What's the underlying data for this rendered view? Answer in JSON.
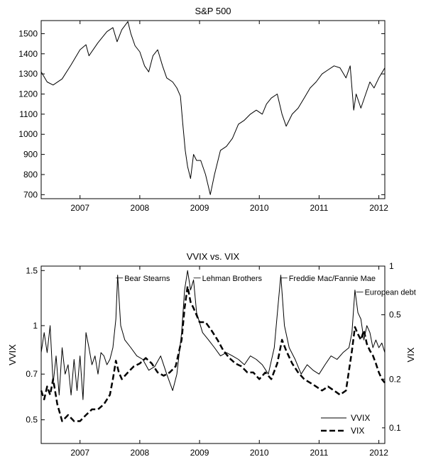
{
  "chart_data": [
    {
      "type": "line",
      "title": "S&P 500",
      "xlabel": "",
      "ylabel": "",
      "x_ticks": [
        "2007",
        "2008",
        "2009",
        "2010",
        "2011",
        "2012"
      ],
      "x_tick_years": [
        2007,
        2008,
        2009,
        2010,
        2011,
        2012
      ],
      "xlim": [
        2006.35,
        2012.1
      ],
      "ylim": [
        680,
        1565
      ],
      "y_ticks": [
        700,
        800,
        900,
        1000,
        1100,
        1200,
        1300,
        1400,
        1500
      ],
      "grid": false,
      "series": [
        {
          "color": "#000000",
          "x": [
            2006.35,
            2006.45,
            2006.55,
            2006.7,
            2006.85,
            2007.0,
            2007.1,
            2007.15,
            2007.3,
            2007.45,
            2007.55,
            2007.62,
            2007.7,
            2007.8,
            2007.85,
            2007.92,
            2008.0,
            2008.08,
            2008.15,
            2008.22,
            2008.3,
            2008.38,
            2008.45,
            2008.55,
            2008.62,
            2008.68,
            2008.72,
            2008.76,
            2008.8,
            2008.85,
            2008.9,
            2008.95,
            2009.02,
            2009.1,
            2009.18,
            2009.25,
            2009.35,
            2009.45,
            2009.55,
            2009.65,
            2009.75,
            2009.85,
            2009.95,
            2010.05,
            2010.12,
            2010.2,
            2010.3,
            2010.38,
            2010.45,
            2010.55,
            2010.65,
            2010.75,
            2010.85,
            2010.95,
            2011.05,
            2011.15,
            2011.25,
            2011.35,
            2011.45,
            2011.52,
            2011.58,
            2011.62,
            2011.7,
            2011.78,
            2011.85,
            2011.92,
            2012.0,
            2012.1
          ],
          "values": [
            1310,
            1260,
            1245,
            1275,
            1345,
            1420,
            1445,
            1390,
            1455,
            1510,
            1530,
            1460,
            1520,
            1560,
            1500,
            1440,
            1410,
            1340,
            1310,
            1390,
            1420,
            1340,
            1280,
            1260,
            1230,
            1190,
            1050,
            920,
            840,
            780,
            900,
            870,
            870,
            800,
            700,
            800,
            920,
            940,
            980,
            1050,
            1070,
            1100,
            1120,
            1100,
            1150,
            1180,
            1200,
            1100,
            1040,
            1100,
            1130,
            1180,
            1230,
            1260,
            1300,
            1320,
            1340,
            1330,
            1280,
            1340,
            1120,
            1200,
            1130,
            1200,
            1260,
            1230,
            1280,
            1330
          ]
        }
      ]
    },
    {
      "type": "line",
      "title": "VVIX vs. VIX",
      "xlabel": "",
      "ylabel": "VVIX",
      "ylabel_right": "VIX",
      "x_ticks": [
        "2007",
        "2008",
        "2009",
        "2010",
        "2011",
        "2012"
      ],
      "x_tick_years": [
        2007,
        2008,
        2009,
        2010,
        2011,
        2012
      ],
      "xlim": [
        2006.35,
        2012.1
      ],
      "y_scale": "log",
      "ylim": [
        0.42,
        1.55
      ],
      "y_ticks": [
        0.5,
        0.7,
        1,
        1.5
      ],
      "y_tick_labels": [
        "0.5",
        "0.7",
        "1",
        "1.5"
      ],
      "y2_scale": "log",
      "y2lim": [
        0.08,
        1
      ],
      "y2_ticks": [
        0.1,
        0.2,
        0.5,
        1
      ],
      "y2_tick_labels": [
        "0.1",
        "0.2",
        "0.5",
        "1"
      ],
      "grid": false,
      "legend": "bottom-right",
      "annotations": [
        {
          "text": "Bear Stearns",
          "x": 2007.6,
          "y": 1.42
        },
        {
          "text": "Lehman Brothers",
          "x": 2008.9,
          "y": 1.42
        },
        {
          "text": "Freddie Mac/Fannie Mae",
          "x": 2010.35,
          "y": 1.42
        },
        {
          "text": "European debt",
          "x": 2011.62,
          "y": 1.28
        }
      ],
      "series": [
        {
          "name": "VVIX",
          "axis": "left",
          "dash": "solid",
          "color": "#000000",
          "x": [
            2006.35,
            2006.4,
            2006.45,
            2006.5,
            2006.55,
            2006.6,
            2006.65,
            2006.7,
            2006.75,
            2006.8,
            2006.85,
            2006.9,
            2006.95,
            2007.0,
            2007.05,
            2007.1,
            2007.15,
            2007.2,
            2007.25,
            2007.3,
            2007.35,
            2007.4,
            2007.45,
            2007.5,
            2007.55,
            2007.6,
            2007.63,
            2007.68,
            2007.75,
            2007.85,
            2007.95,
            2008.05,
            2008.15,
            2008.25,
            2008.35,
            2008.45,
            2008.55,
            2008.62,
            2008.7,
            2008.75,
            2008.8,
            2008.85,
            2008.9,
            2008.95,
            2009.05,
            2009.15,
            2009.25,
            2009.35,
            2009.45,
            2009.55,
            2009.65,
            2009.75,
            2009.85,
            2009.95,
            2010.05,
            2010.15,
            2010.25,
            2010.32,
            2010.36,
            2010.42,
            2010.5,
            2010.6,
            2010.7,
            2010.8,
            2010.9,
            2011.0,
            2011.1,
            2011.2,
            2011.3,
            2011.4,
            2011.5,
            2011.55,
            2011.6,
            2011.65,
            2011.7,
            2011.75,
            2011.8,
            2011.85,
            2011.9,
            2011.95,
            2012.0,
            2012.05,
            2012.1
          ],
          "values": [
            0.82,
            0.95,
            0.82,
            1.0,
            0.65,
            0.8,
            0.6,
            0.85,
            0.7,
            0.75,
            0.6,
            0.78,
            0.62,
            0.8,
            0.58,
            0.95,
            0.85,
            0.75,
            0.8,
            0.7,
            0.82,
            0.8,
            0.75,
            0.78,
            0.85,
            1.05,
            1.45,
            1.0,
            0.9,
            0.85,
            0.8,
            0.78,
            0.72,
            0.74,
            0.8,
            0.7,
            0.62,
            0.7,
            0.95,
            1.3,
            1.5,
            1.3,
            1.4,
            1.1,
            0.95,
            0.9,
            0.85,
            0.8,
            0.82,
            0.8,
            0.78,
            0.75,
            0.8,
            0.78,
            0.75,
            0.7,
            0.85,
            1.2,
            1.45,
            1.0,
            0.85,
            0.78,
            0.7,
            0.75,
            0.72,
            0.7,
            0.75,
            0.8,
            0.78,
            0.82,
            0.85,
            0.95,
            1.3,
            1.1,
            1.05,
            0.9,
            1.0,
            0.95,
            0.85,
            0.9,
            0.85,
            0.88,
            0.82
          ]
        },
        {
          "name": "VIX",
          "axis": "right",
          "dash": "dashed",
          "color": "#000000",
          "x": [
            2006.35,
            2006.4,
            2006.45,
            2006.5,
            2006.55,
            2006.62,
            2006.7,
            2006.8,
            2006.9,
            2007.0,
            2007.1,
            2007.2,
            2007.3,
            2007.4,
            2007.5,
            2007.55,
            2007.6,
            2007.65,
            2007.7,
            2007.8,
            2007.9,
            2008.0,
            2008.1,
            2008.2,
            2008.3,
            2008.4,
            2008.5,
            2008.6,
            2008.7,
            2008.75,
            2008.8,
            2008.85,
            2008.9,
            2009.0,
            2009.1,
            2009.2,
            2009.3,
            2009.4,
            2009.5,
            2009.6,
            2009.7,
            2009.8,
            2009.9,
            2010.0,
            2010.1,
            2010.2,
            2010.3,
            2010.38,
            2010.45,
            2010.55,
            2010.65,
            2010.75,
            2010.85,
            2010.95,
            2011.05,
            2011.15,
            2011.25,
            2011.35,
            2011.45,
            2011.55,
            2011.6,
            2011.65,
            2011.7,
            2011.75,
            2011.8,
            2011.85,
            2011.9,
            2011.95,
            2012.0,
            2012.05,
            2012.1
          ],
          "values": [
            0.17,
            0.15,
            0.18,
            0.16,
            0.2,
            0.14,
            0.11,
            0.12,
            0.11,
            0.11,
            0.12,
            0.13,
            0.13,
            0.14,
            0.16,
            0.2,
            0.26,
            0.22,
            0.2,
            0.22,
            0.24,
            0.25,
            0.27,
            0.25,
            0.22,
            0.21,
            0.22,
            0.24,
            0.35,
            0.55,
            0.75,
            0.6,
            0.55,
            0.45,
            0.45,
            0.4,
            0.35,
            0.3,
            0.27,
            0.25,
            0.24,
            0.22,
            0.22,
            0.2,
            0.22,
            0.2,
            0.25,
            0.35,
            0.3,
            0.25,
            0.22,
            0.2,
            0.19,
            0.18,
            0.17,
            0.18,
            0.17,
            0.16,
            0.17,
            0.3,
            0.42,
            0.38,
            0.35,
            0.4,
            0.33,
            0.3,
            0.28,
            0.25,
            0.22,
            0.2,
            0.19
          ]
        }
      ]
    }
  ]
}
